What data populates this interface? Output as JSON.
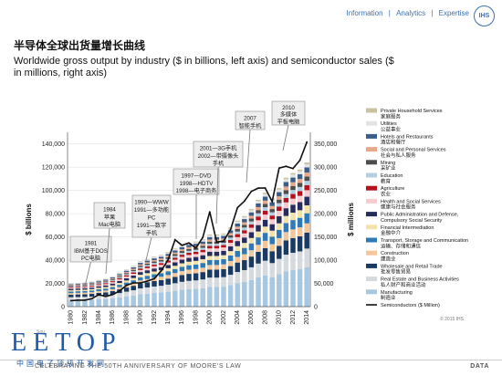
{
  "nav": {
    "information": "Information",
    "analytics": "Analytics",
    "expertise": "Expertise",
    "sep": "|",
    "logo": "IHS"
  },
  "header": {
    "title_cn": "半导体全球出货量增长曲线",
    "title_en": "Worldwide gross output by industry ($ in billions, left axis) and semiconductor sales ($ in millions, right axis)"
  },
  "footer": {
    "brand": "EETOP",
    "brand_sub": "中国电子顶级开发网",
    "text": "CELEBRATING THE 50TH ANNIVERSARY OF MOORE'S LAW",
    "data_label": "DATA",
    "copyright": "© 2015 IHS",
    "source": "Sou"
  },
  "colors": {
    "nav": "#3d6fb0",
    "line": "#1a1a1a",
    "grid": "#e3e3e3",
    "callout_bg": "#eeeeee",
    "callout_border": "#8a8a8a"
  },
  "chart_data": {
    "type": "bar",
    "stacked": true,
    "title": "Worldwide gross output by industry ($ in billions, left axis) and semiconductor sales ($ in millions, right axis)",
    "ylabel_left": "$ billions",
    "ylabel_right": "$ millions",
    "ylim_left": [
      0,
      150000
    ],
    "ylim_right": [
      0,
      375000
    ],
    "yticks_left": [
      "0",
      "20,000",
      "40,000",
      "60,000",
      "80,000",
      "100,000",
      "120,000",
      "140,000"
    ],
    "yticks_right": [
      "0",
      "50,000",
      "100,000",
      "150,000",
      "200,000",
      "250,000",
      "300,000",
      "350,000"
    ],
    "xticks": [
      "1980",
      "1982",
      "1984",
      "1986",
      "1988",
      "1990",
      "1992",
      "1994",
      "1996",
      "1998",
      "2000",
      "2002",
      "2004",
      "2006",
      "2008",
      "2010",
      "2012",
      "2014"
    ],
    "legend_position": "right",
    "years": [
      1980,
      1981,
      1982,
      1983,
      1984,
      1985,
      1986,
      1987,
      1988,
      1989,
      1990,
      1991,
      1992,
      1993,
      1994,
      1995,
      1996,
      1997,
      1998,
      1999,
      2000,
      2001,
      2002,
      2003,
      2004,
      2005,
      2006,
      2007,
      2008,
      2009,
      2010,
      2011,
      2012,
      2013,
      2014
    ],
    "bar_totals": [
      20000,
      20500,
      20800,
      21500,
      23000,
      24000,
      26000,
      29000,
      32000,
      35000,
      39000,
      41000,
      43000,
      44500,
      47000,
      50000,
      53000,
      55000,
      56000,
      58000,
      62000,
      62000,
      63000,
      68000,
      74000,
      78000,
      84000,
      92000,
      98000,
      93000,
      102000,
      111000,
      115000,
      118000,
      124000
    ],
    "semiconductor_sales": [
      13000,
      14000,
      14000,
      17000,
      26000,
      22000,
      26000,
      34000,
      46000,
      51000,
      51000,
      55000,
      60000,
      77000,
      101000,
      144000,
      132000,
      137000,
      126000,
      149000,
      204000,
      139000,
      141000,
      166000,
      213000,
      227000,
      248000,
      255000,
      255000,
      226000,
      298000,
      302000,
      297000,
      315000,
      354000
    ],
    "series": [
      {
        "name": "Private Household Services",
        "name_cn": "家庭服务",
        "color": "#c9c2a0",
        "share": 0.012
      },
      {
        "name": "Utilities",
        "name_cn": "公益事业",
        "color": "#e2e4e6",
        "share": 0.022
      },
      {
        "name": "Hotels and Restaurants",
        "name_cn": "酒店和餐厅",
        "color": "#3a5d8a",
        "share": 0.035
      },
      {
        "name": "Social and Personal Services",
        "name_cn": "社会与私人服务",
        "color": "#e9a889",
        "share": 0.028
      },
      {
        "name": "Mining",
        "name_cn": "采矿业",
        "color": "#4d4d4d",
        "share": 0.03
      },
      {
        "name": "Education",
        "name_cn": "教育",
        "color": "#b4cfe3",
        "share": 0.03
      },
      {
        "name": "Agriculture",
        "name_cn": "农业",
        "color": "#b5121b",
        "share": 0.035
      },
      {
        "name": "Health and Social Services",
        "name_cn": "健康与社会服务",
        "color": "#f7ccd1",
        "share": 0.045
      },
      {
        "name": "Public Administration and Defense, Compulsory Social Security",
        "name_cn": "",
        "color": "#262d5c",
        "share": 0.06
      },
      {
        "name": "Financial Intermediation",
        "name_cn": "金融中介",
        "color": "#f4e2a8",
        "share": 0.055
      },
      {
        "name": "Transport, Storage and Communication",
        "name_cn": "运输、存储和通信",
        "color": "#2f79b6",
        "share": 0.07
      },
      {
        "name": "Construction",
        "name_cn": "建造业",
        "color": "#f4c69a",
        "share": 0.065
      },
      {
        "name": "Wholesale and Retail Trade",
        "name_cn": "批发零售贸易",
        "color": "#1a3a63",
        "share": 0.11
      },
      {
        "name": "Real Estate and Business Activities",
        "name_cn": "私人财产和商业活动",
        "color": "#d6d9dd",
        "share": 0.13
      },
      {
        "name": "Manufacturing",
        "name_cn": "制造业",
        "color": "#a8c7e0",
        "share": 0.273
      },
      {
        "name": "Semiconductors ($ Million)",
        "name_cn": "",
        "color": "#111111",
        "type": "line"
      }
    ],
    "annotations": [
      {
        "year": 1981,
        "lines": [
          "1981",
          "IBM基于DOS",
          "PC电脑"
        ]
      },
      {
        "year": 1984,
        "lines": [
          "1984",
          "苹果",
          "Mac电脑"
        ]
      },
      {
        "year": 1990,
        "lines": [
          "1990—WWW",
          "1991—多功能",
          "PC",
          "1991—数字",
          "手机"
        ]
      },
      {
        "year": 1998,
        "lines": [
          "1997—DVD",
          "1998—HDTV",
          "1998—电子商务"
        ]
      },
      {
        "year": 2001,
        "lines": [
          "2001—3G手机",
          "2002—带摄像头",
          "手机"
        ]
      },
      {
        "year": 2007,
        "lines": [
          "2007",
          "智能手机"
        ]
      },
      {
        "year": 2010,
        "lines": [
          "2010",
          "多媒体",
          "平板电脑"
        ]
      }
    ]
  }
}
